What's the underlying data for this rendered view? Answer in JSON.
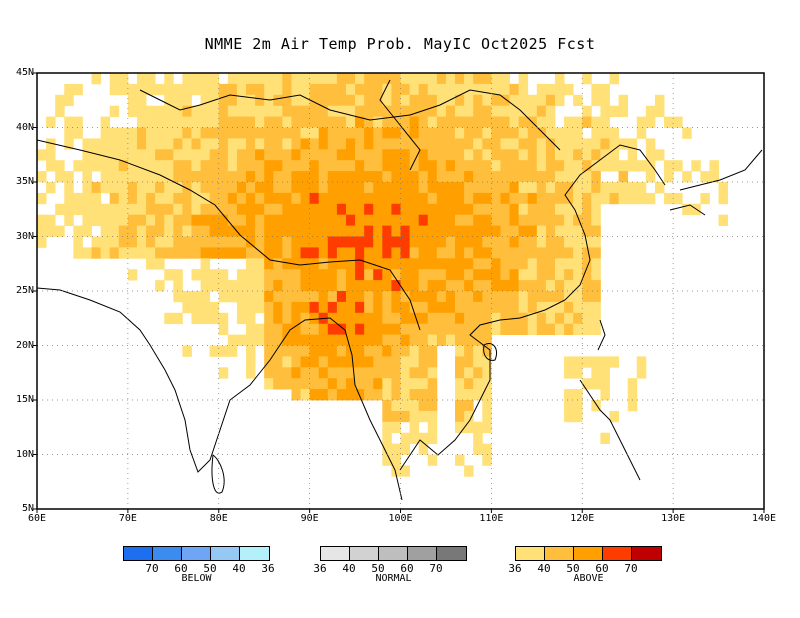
{
  "title": "NMME 2m Air Temp Prob. MayIC  Oct2025 Fcst",
  "lat_labels": [
    "45N",
    "40N",
    "35N",
    "30N",
    "25N",
    "20N",
    "15N",
    "10N",
    "5N"
  ],
  "lon_labels": [
    "60E",
    "70E",
    "80E",
    "90E",
    "100E",
    "110E",
    "120E",
    "130E",
    "140E"
  ],
  "legend": {
    "below": {
      "caption": "BELOW",
      "ticks": [
        "70",
        "60",
        "50",
        "40",
        "36"
      ],
      "colors": [
        "#1e6ef0",
        "#3c8cf0",
        "#6ea5f5",
        "#96c8f5",
        "#b4f0fa"
      ]
    },
    "normal": {
      "caption": "NORMAL",
      "ticks": [
        "36",
        "40",
        "50",
        "60",
        "70"
      ],
      "colors": [
        "#e6e6e6",
        "#d2d2d2",
        "#bebebe",
        "#a0a0a0",
        "#787878"
      ]
    },
    "above": {
      "caption": "ABOVE",
      "ticks": [
        "36",
        "40",
        "50",
        "60",
        "70"
      ],
      "colors": [
        "#ffe178",
        "#ffbe3c",
        "#ffa000",
        "#ff3c00",
        "#c00000"
      ]
    }
  }
}
